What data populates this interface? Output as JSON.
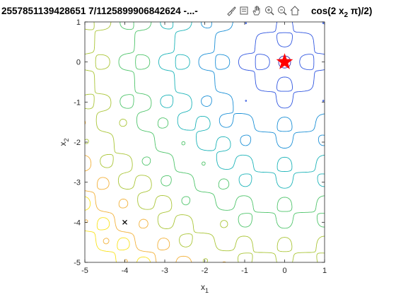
{
  "figure": {
    "title_left": "2557851139428651 7/1125899906842624 -...-",
    "title_right": "cos(2  x",
    "title_right_sub": "2",
    "title_right_tail": " π)/2)"
  },
  "toolbar": {
    "items": [
      {
        "icon": "brush-icon"
      },
      {
        "icon": "data-tips-icon"
      },
      {
        "icon": "pan-hand-icon"
      },
      {
        "icon": "zoom-in-icon"
      },
      {
        "icon": "zoom-out-icon"
      },
      {
        "icon": "home-icon"
      }
    ]
  },
  "chart_data": {
    "type": "contour",
    "xlabel": "x",
    "xlabel_sub": "1",
    "ylabel": "x",
    "ylabel_sub": "2",
    "xlim": [
      -5,
      1
    ],
    "ylim": [
      -5,
      1
    ],
    "xticks": [
      -5,
      -4,
      -3,
      -2,
      -1,
      0,
      1
    ],
    "yticks": [
      -5,
      -4,
      -3,
      -2,
      -1,
      0,
      1
    ],
    "tick_labels_x": [
      "-5",
      "-4",
      "-3",
      "-2",
      "-1",
      "0",
      "1"
    ],
    "tick_labels_y": [
      "-5",
      "-4",
      "-3",
      "-2",
      "-1",
      "0",
      "1"
    ],
    "grid": false,
    "colormap": [
      "#3e26a8",
      "#2f55e0",
      "#1a8fd6",
      "#1bb3b8",
      "#4ec46a",
      "#a9c536",
      "#f2b13a",
      "#f9e21c"
    ],
    "markers": [
      {
        "type": "star",
        "x": 0,
        "y": 0,
        "color": "#ff0000"
      },
      {
        "type": "x",
        "x": -4,
        "y": -4,
        "color": "#000000"
      }
    ]
  }
}
